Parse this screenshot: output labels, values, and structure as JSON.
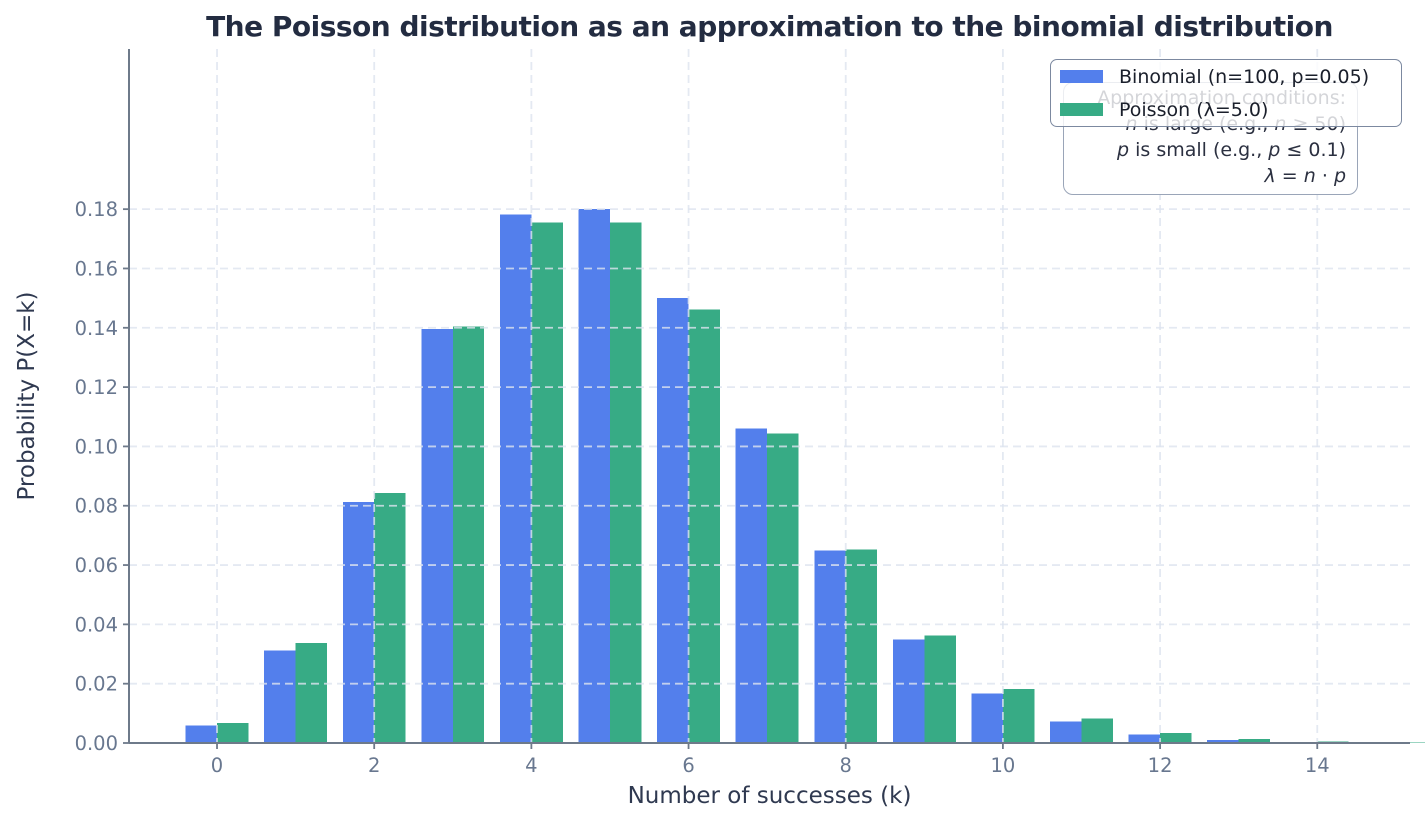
{
  "title": "The Poisson distribution as an approximation to the binomial distribution",
  "chart_data": {
    "type": "bar",
    "title": "The Poisson distribution as an approximation to the binomial distribution",
    "xlabel": "Number of successes (k)",
    "ylabel": "Probability P(X=k)",
    "x": [
      0,
      1,
      2,
      3,
      4,
      5,
      6,
      7,
      8,
      9,
      10,
      11,
      12,
      13,
      14,
      15
    ],
    "series": [
      {
        "name": "Binomial (n=100, p=0.05)",
        "color": "#537fec",
        "values": [
          0.00592,
          0.03116,
          0.08118,
          0.13958,
          0.17814,
          0.18002,
          0.15002,
          0.10603,
          0.06487,
          0.0349,
          0.01672,
          0.0072,
          0.00281,
          0.001,
          0.00032,
          0.0001
        ]
      },
      {
        "name": "Poisson (λ=5.0)",
        "color": "#37ab85",
        "values": [
          0.00674,
          0.03369,
          0.08422,
          0.14037,
          0.17547,
          0.17547,
          0.14622,
          0.10444,
          0.06528,
          0.03627,
          0.01813,
          0.00824,
          0.00343,
          0.00132,
          0.00047,
          0.00016
        ]
      }
    ],
    "bar_width": 0.4,
    "xlim": [
      -1.12,
      15.18
    ],
    "ylim": [
      0,
      0.234
    ],
    "xticks": [
      0,
      2,
      4,
      6,
      8,
      10,
      12,
      14
    ],
    "yticks": [
      0.0,
      0.02,
      0.04,
      0.06,
      0.08,
      0.1,
      0.12,
      0.14,
      0.16,
      0.18
    ],
    "grid": {
      "style": "dashed",
      "axes": "both",
      "drawn_over_bars": true
    },
    "legend_position": "upper right"
  },
  "annotation": {
    "lines": [
      {
        "parts": [
          {
            "text": "Approximation conditions:",
            "italic": false
          }
        ]
      },
      {
        "parts": [
          {
            "text": "n",
            "italic": true
          },
          {
            "text": " is large (e.g., ",
            "italic": false
          },
          {
            "text": "n",
            "italic": true
          },
          {
            "text": " ≥ 50)",
            "italic": false
          }
        ]
      },
      {
        "parts": [
          {
            "text": "p",
            "italic": true
          },
          {
            "text": " is small (e.g., ",
            "italic": false
          },
          {
            "text": "p",
            "italic": true
          },
          {
            "text": " ≤ 0.1)",
            "italic": false
          }
        ]
      },
      {
        "parts": [
          {
            "text": "λ",
            "italic": true
          },
          {
            "text": " = ",
            "italic": false
          },
          {
            "text": "n",
            "italic": true
          },
          {
            "text": " · ",
            "italic": false
          },
          {
            "text": "p",
            "italic": true
          }
        ]
      }
    ]
  },
  "colors": {
    "background": "#ffffff",
    "bar_binomial": "#537fec",
    "bar_poisson": "#37ab85",
    "grid": "#dde3ef",
    "spine": "#6e7a8a",
    "tick_label": "#68778f",
    "axis_label": "#2f3950",
    "title": "#232c41",
    "legend_border": "#7c89a0",
    "annotation_border": "#9aa5b8",
    "annotation_text": "#2b3040"
  }
}
